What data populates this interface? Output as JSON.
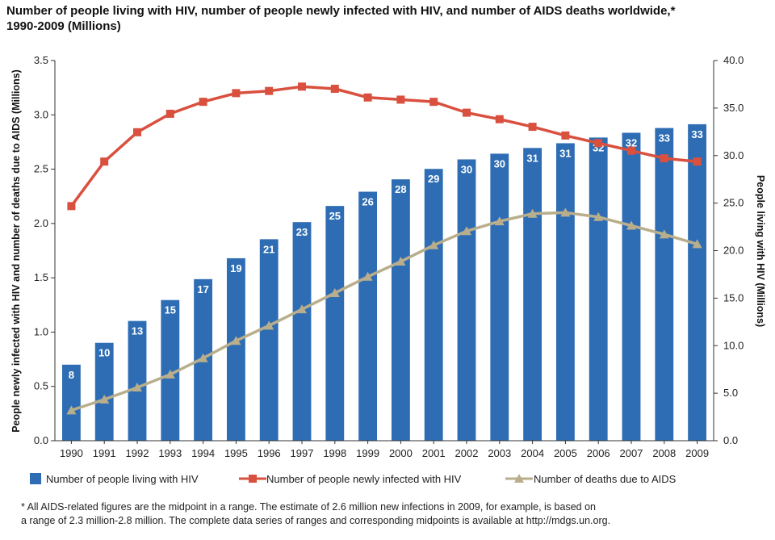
{
  "title": {
    "line1": "Number of people living with HIV, number of people newly infected with HIV, and number of AIDS deaths worldwide,*",
    "line2": "1990-2009 (Millions)"
  },
  "colors": {
    "bars": "#2e6db4",
    "new_infections": "#d9503f",
    "deaths": "#b9ae8c"
  },
  "chart_data": {
    "type": "bar",
    "categories": [
      "1990",
      "1991",
      "1992",
      "1993",
      "1994",
      "1995",
      "1996",
      "1997",
      "1998",
      "1999",
      "2000",
      "2001",
      "2002",
      "2003",
      "2004",
      "2005",
      "2006",
      "2007",
      "2008",
      "2009"
    ],
    "y_left": {
      "label": "People newly infected with HIV and number of deaths due to AIDS (Millions)",
      "ticks": [
        "0.0",
        "0.5",
        "1.0",
        "1.5",
        "2.0",
        "2.5",
        "3.0",
        "3.5"
      ],
      "range": [
        0,
        3.5
      ]
    },
    "y_right": {
      "label": "People living with HIV (Millions)",
      "ticks": [
        "0.0",
        "5.0",
        "10.0",
        "15.0",
        "20.0",
        "25.0",
        "30.0",
        "35.0",
        "40.0"
      ],
      "range": [
        0,
        40
      ]
    },
    "series": [
      {
        "name": "Number of people living with HIV",
        "kind": "bar",
        "axis": "right",
        "values": [
          8.0,
          10.3,
          12.6,
          14.8,
          17.0,
          19.2,
          21.2,
          23.0,
          24.7,
          26.2,
          27.5,
          28.6,
          29.6,
          30.2,
          30.8,
          31.3,
          31.9,
          32.4,
          32.9,
          33.3
        ],
        "labels": [
          "8",
          "10",
          "13",
          "15",
          "17",
          "19",
          "21",
          "23",
          "25",
          "26",
          "28",
          "29",
          "30",
          "30",
          "31",
          "31",
          "32",
          "32",
          "33",
          "33"
        ]
      },
      {
        "name": "Number of people newly infected with HIV",
        "kind": "line",
        "marker": "square",
        "axis": "left",
        "values": [
          2.16,
          2.57,
          2.84,
          3.01,
          3.12,
          3.2,
          3.22,
          3.26,
          3.24,
          3.16,
          3.14,
          3.12,
          3.02,
          2.96,
          2.89,
          2.81,
          2.74,
          2.67,
          2.6,
          2.57
        ]
      },
      {
        "name": "Number of deaths due to AIDS",
        "kind": "line",
        "marker": "triangle",
        "axis": "left",
        "values": [
          0.28,
          0.38,
          0.49,
          0.61,
          0.76,
          0.92,
          1.06,
          1.21,
          1.36,
          1.51,
          1.65,
          1.8,
          1.93,
          2.02,
          2.09,
          2.1,
          2.06,
          1.98,
          1.9,
          1.81
        ]
      }
    ],
    "grid": false,
    "legend_position": "bottom"
  },
  "footnote": {
    "line1": "* All AIDS-related figures are the midpoint in a range. The estimate of 2.6 million new infections in 2009, for example, is based on",
    "line2": "a range of 2.3 million-2.8 million. The complete data series of ranges and corresponding midpoints is available at http://mdgs.un.org."
  }
}
